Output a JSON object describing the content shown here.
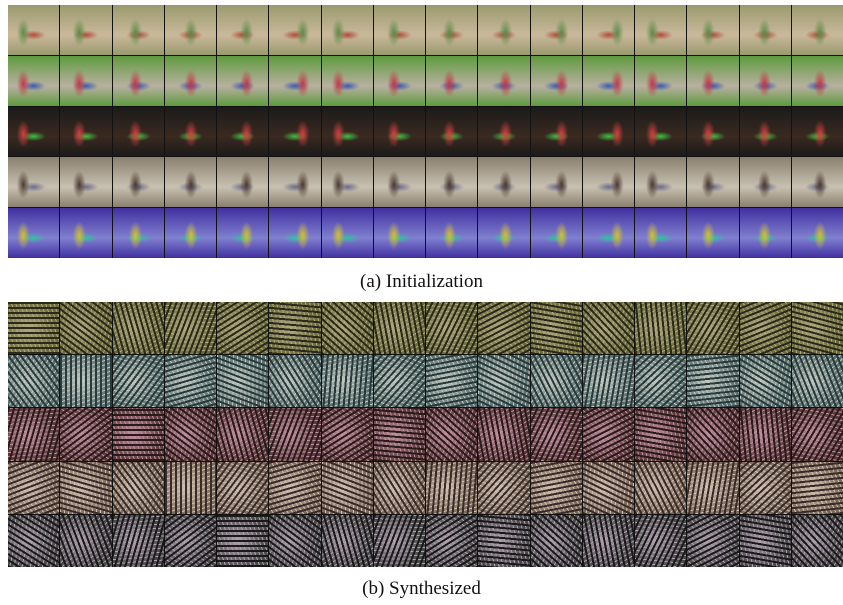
{
  "figure": {
    "panels": [
      {
        "caption": "(a) Initialization"
      },
      {
        "caption": "(b) Synthesized"
      }
    ]
  }
}
